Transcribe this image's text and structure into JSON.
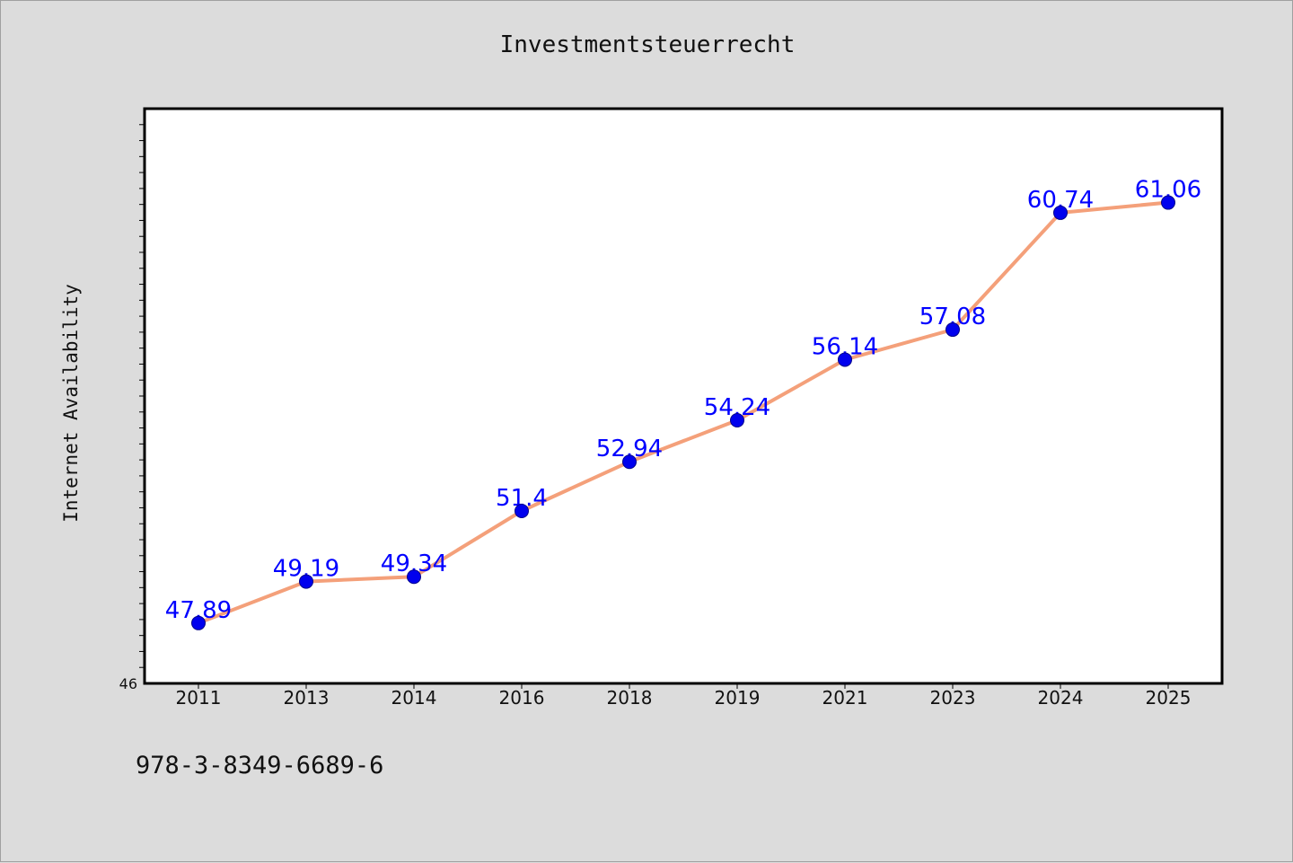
{
  "chart_data": {
    "type": "line",
    "title": "Investmentsteuerrecht",
    "xlabel": "",
    "ylabel": "Internet Availability",
    "categories": [
      "2011",
      "2013",
      "2014",
      "2016",
      "2018",
      "2019",
      "2021",
      "2023",
      "2024",
      "2025"
    ],
    "series": [
      {
        "values": [
          47.89,
          49.19,
          49.34,
          51.4,
          52.94,
          54.24,
          56.14,
          57.08,
          60.74,
          61.06
        ],
        "data_labels": [
          "47.89",
          "49.19",
          "49.34",
          "51.4",
          "52.94",
          "54.24",
          "56.14",
          "57.08",
          "60.74",
          "61.06"
        ]
      }
    ],
    "ylim": [
      46,
      64
    ],
    "y_tick_labels": [
      "46"
    ],
    "grid": false,
    "legend": "none",
    "colors": {
      "line": "#f4a07a",
      "marker": "#0000ee",
      "data_label": "#0000ff",
      "plot_background": "#ffffff",
      "page_background": "#dcdcdc"
    }
  },
  "footer": {
    "isbn": "978-3-8349-6689-6"
  }
}
